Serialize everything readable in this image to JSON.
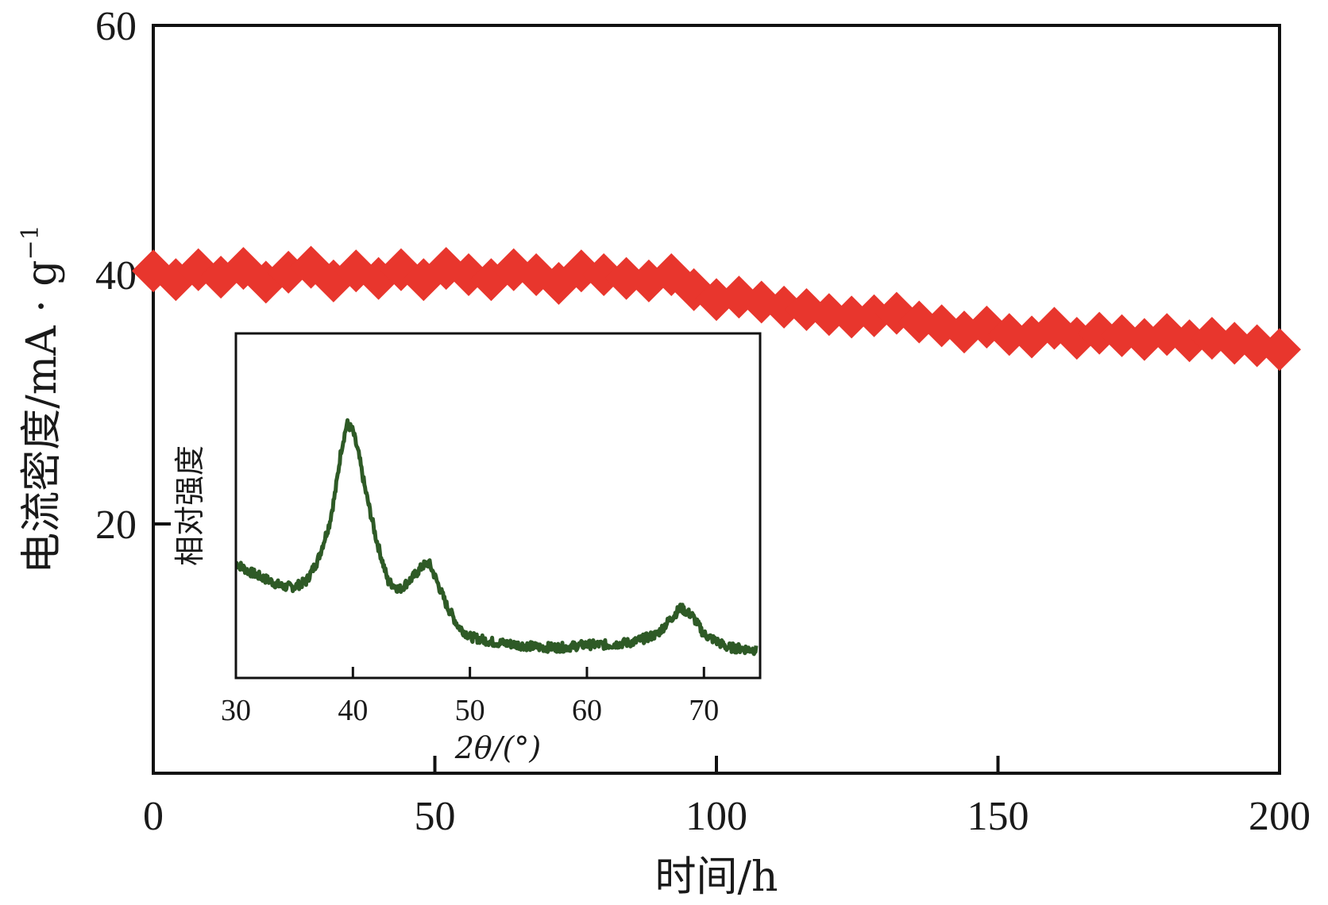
{
  "chart_data": [
    {
      "type": "line",
      "name": "main",
      "marker": "diamond",
      "series": [
        {
          "name": "电流密度",
          "color": "#e8362d",
          "x": [
            0,
            4,
            8,
            12,
            16,
            20,
            24,
            28,
            32,
            36,
            40,
            44,
            48,
            52,
            56,
            60,
            64,
            68,
            72,
            76,
            80,
            84,
            88,
            92,
            96,
            100,
            104,
            108,
            112,
            116,
            120,
            124,
            128,
            132,
            136,
            140,
            144,
            148,
            152,
            156,
            160,
            164,
            168,
            172,
            176,
            180,
            184,
            188,
            192,
            196,
            200
          ],
          "y": [
            40.3,
            39.6,
            40.4,
            39.8,
            40.5,
            39.4,
            40.2,
            40.6,
            39.5,
            40.3,
            39.7,
            40.4,
            39.6,
            40.5,
            40.0,
            39.6,
            40.4,
            40.0,
            39.3,
            40.3,
            40.0,
            39.7,
            39.5,
            40.0,
            38.8,
            38.0,
            38.2,
            37.8,
            37.4,
            37.2,
            36.8,
            36.6,
            36.7,
            36.9,
            36.2,
            35.9,
            35.4,
            35.8,
            35.2,
            35.0,
            35.7,
            34.9,
            35.3,
            35.1,
            34.8,
            35.2,
            34.7,
            34.9,
            34.5,
            34.3,
            34.0
          ]
        }
      ],
      "xlabel": "时间/h",
      "ylabel": "电流密度/mA · g",
      "ylabel_sup": "−1",
      "xlim": [
        0,
        200
      ],
      "ylim": [
        0,
        60
      ],
      "xticks": [
        0,
        50,
        100,
        150,
        200
      ],
      "yticks": [
        20,
        40,
        60
      ],
      "xtick_labels": [
        "0",
        "50",
        "100",
        "150",
        "200"
      ],
      "ytick_labels": [
        "20",
        "40",
        "60"
      ]
    },
    {
      "type": "line",
      "name": "inset",
      "series": [
        {
          "name": "XRD",
          "color": "#2e5a26",
          "x": [
            30,
            31,
            32,
            33,
            34,
            35,
            36,
            37,
            38,
            38.5,
            39,
            39.5,
            40,
            40.5,
            41,
            42,
            43,
            44,
            45,
            46,
            46.5,
            47,
            48,
            49,
            50,
            52,
            54,
            56,
            58,
            60,
            62,
            64,
            66,
            67,
            68,
            69,
            70,
            72,
            74.5
          ],
          "y": [
            0.37,
            0.34,
            0.32,
            0.3,
            0.28,
            0.28,
            0.3,
            0.38,
            0.52,
            0.64,
            0.8,
            0.9,
            0.87,
            0.78,
            0.66,
            0.46,
            0.3,
            0.27,
            0.31,
            0.36,
            0.37,
            0.32,
            0.21,
            0.13,
            0.09,
            0.07,
            0.06,
            0.05,
            0.05,
            0.06,
            0.06,
            0.07,
            0.1,
            0.15,
            0.2,
            0.17,
            0.1,
            0.05,
            0.04
          ]
        }
      ],
      "xlabel": "2θ/(°)",
      "ylabel": "相对强度",
      "xlim": [
        30,
        74.8
      ],
      "ylim": [
        0,
        1
      ],
      "xticks": [
        30,
        40,
        50,
        60,
        70
      ],
      "xtick_labels": [
        "30",
        "40",
        "50",
        "60",
        "70"
      ]
    }
  ]
}
